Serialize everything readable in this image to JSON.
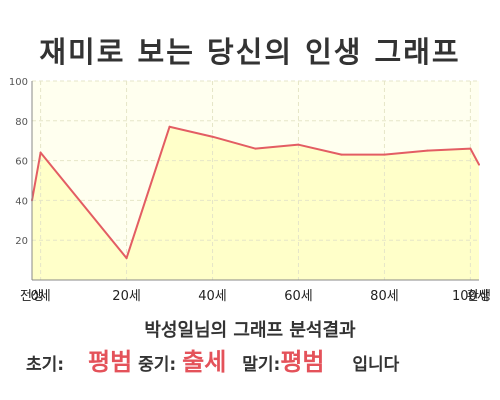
{
  "page": {
    "title": "재미로 보는 당신의 인생 그래프",
    "result_title": "박성일님의 그래프 분석결과",
    "result": {
      "early_label": "초기:",
      "early_value": "평범",
      "middle_label": "중기:",
      "middle_value": "출세",
      "late_label": "말기:",
      "late_value": "평범",
      "suffix": "입니다"
    }
  },
  "colors": {
    "line": "#e35d63",
    "fill": "#ffffc9",
    "highlight": "#e4525a",
    "grid": "#e6e6c8"
  },
  "chart_data": {
    "type": "area",
    "title": "",
    "xlabel": "",
    "ylabel": "",
    "ylim": [
      0,
      100
    ],
    "yticks": [
      "20",
      "40",
      "60",
      "80",
      "100"
    ],
    "xticks": [
      {
        "label": "전생",
        "x": -2
      },
      {
        "label": "0세",
        "x": 0
      },
      {
        "label": "20세",
        "x": 20
      },
      {
        "label": "40세",
        "x": 40
      },
      {
        "label": "60세",
        "x": 60
      },
      {
        "label": "80세",
        "x": 80
      },
      {
        "label": "100세",
        "x": 100
      },
      {
        "label": "환생",
        "x": 102
      }
    ],
    "xrange": [
      -2,
      102
    ],
    "grid": true,
    "series": [
      {
        "points": [
          {
            "x": -2,
            "y": 40
          },
          {
            "x": 0,
            "y": 64
          },
          {
            "x": 20,
            "y": 11
          },
          {
            "x": 30,
            "y": 77
          },
          {
            "x": 40,
            "y": 72
          },
          {
            "x": 50,
            "y": 66
          },
          {
            "x": 60,
            "y": 68
          },
          {
            "x": 70,
            "y": 63
          },
          {
            "x": 80,
            "y": 63
          },
          {
            "x": 90,
            "y": 65
          },
          {
            "x": 100,
            "y": 66
          },
          {
            "x": 102,
            "y": 58
          }
        ]
      }
    ]
  }
}
